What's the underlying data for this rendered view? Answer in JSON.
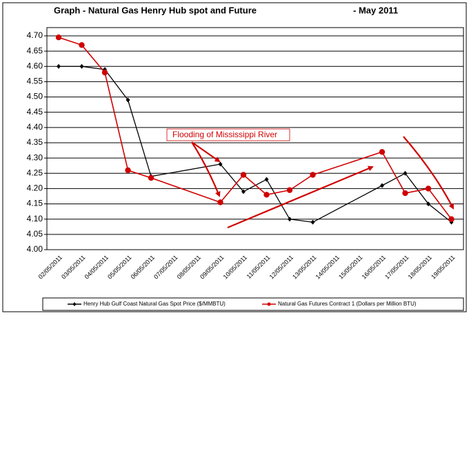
{
  "chart_data": {
    "type": "line",
    "title": "Graph - Natural Gas Henry Hub spot and Future",
    "subtitle": "- May 2011",
    "annotation": "Flooding of Mississippi River",
    "categories": [
      "02/05/2011",
      "03/05/2011",
      "04/05/2011",
      "05/05/2011",
      "06/05/2011",
      "07/05/2011",
      "08/05/2011",
      "09/05/2011",
      "10/05/2011",
      "11/05/2011",
      "12/05/2011",
      "13/05/2011",
      "14/05/2011",
      "15/05/2011",
      "16/05/2011",
      "17/05/2011",
      "18/05/2011",
      "19/05/2011"
    ],
    "series": [
      {
        "name": "Henry Hub Gulf Coast Natural Gas Spot Price ($/MMBTU)",
        "color": "#000000",
        "marker": "diamond",
        "values": [
          4.6,
          4.6,
          4.59,
          4.49,
          4.24,
          null,
          null,
          4.28,
          4.19,
          4.23,
          4.1,
          4.09,
          null,
          null,
          4.21,
          4.25,
          4.15,
          4.09
        ]
      },
      {
        "name": "Natural Gas Futures Contract 1 (Dollars per Million BTU)",
        "color": "#d00000",
        "marker": "circle",
        "values": [
          4.695,
          4.67,
          4.58,
          4.26,
          4.235,
          null,
          null,
          4.155,
          4.245,
          4.18,
          4.195,
          4.245,
          null,
          null,
          4.32,
          4.185,
          4.2,
          4.1
        ]
      }
    ],
    "connect_gaps": true,
    "ylim": [
      4.0,
      4.7
    ],
    "yticks": [
      {
        "value": 4.0,
        "label": "4.00"
      },
      {
        "value": 4.05,
        "label": "4.05"
      },
      {
        "value": 4.1,
        "label": "4.10"
      },
      {
        "value": 4.15,
        "label": "4.15"
      },
      {
        "value": 4.2,
        "label": "4.20"
      },
      {
        "value": 4.25,
        "label": "4.25"
      },
      {
        "value": 4.3,
        "label": "4.30"
      },
      {
        "value": 4.35,
        "label": "4.35"
      },
      {
        "value": 4.4,
        "label": "4.40"
      },
      {
        "value": 4.45,
        "label": "4.45"
      },
      {
        "value": 4.5,
        "label": "4.50"
      },
      {
        "value": 4.55,
        "label": "4.55"
      },
      {
        "value": 4.6,
        "label": "4.60"
      },
      {
        "value": 4.65,
        "label": "4.65"
      },
      {
        "value": 4.7,
        "label": "4.70"
      }
    ],
    "grid": true,
    "legend": "bottom"
  }
}
